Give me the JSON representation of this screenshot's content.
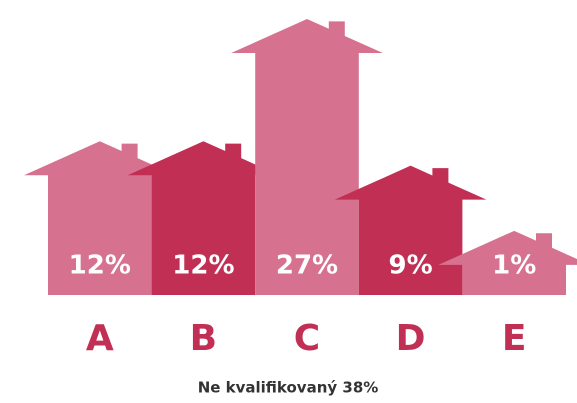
{
  "chart_data": {
    "type": "house-bar",
    "categories": [
      "A",
      "B",
      "C",
      "D",
      "E"
    ],
    "values": [
      12,
      12,
      27,
      9,
      1
    ],
    "value_labels": [
      "12%",
      "12%",
      "27%",
      "9%",
      "1%"
    ],
    "colors": [
      "#d6728f",
      "#c12f55",
      "#d6728f",
      "#c12f55",
      "#d6728f"
    ],
    "label_color": "#c12f55",
    "annotation": "Ne kvalifikovaný 38%"
  }
}
